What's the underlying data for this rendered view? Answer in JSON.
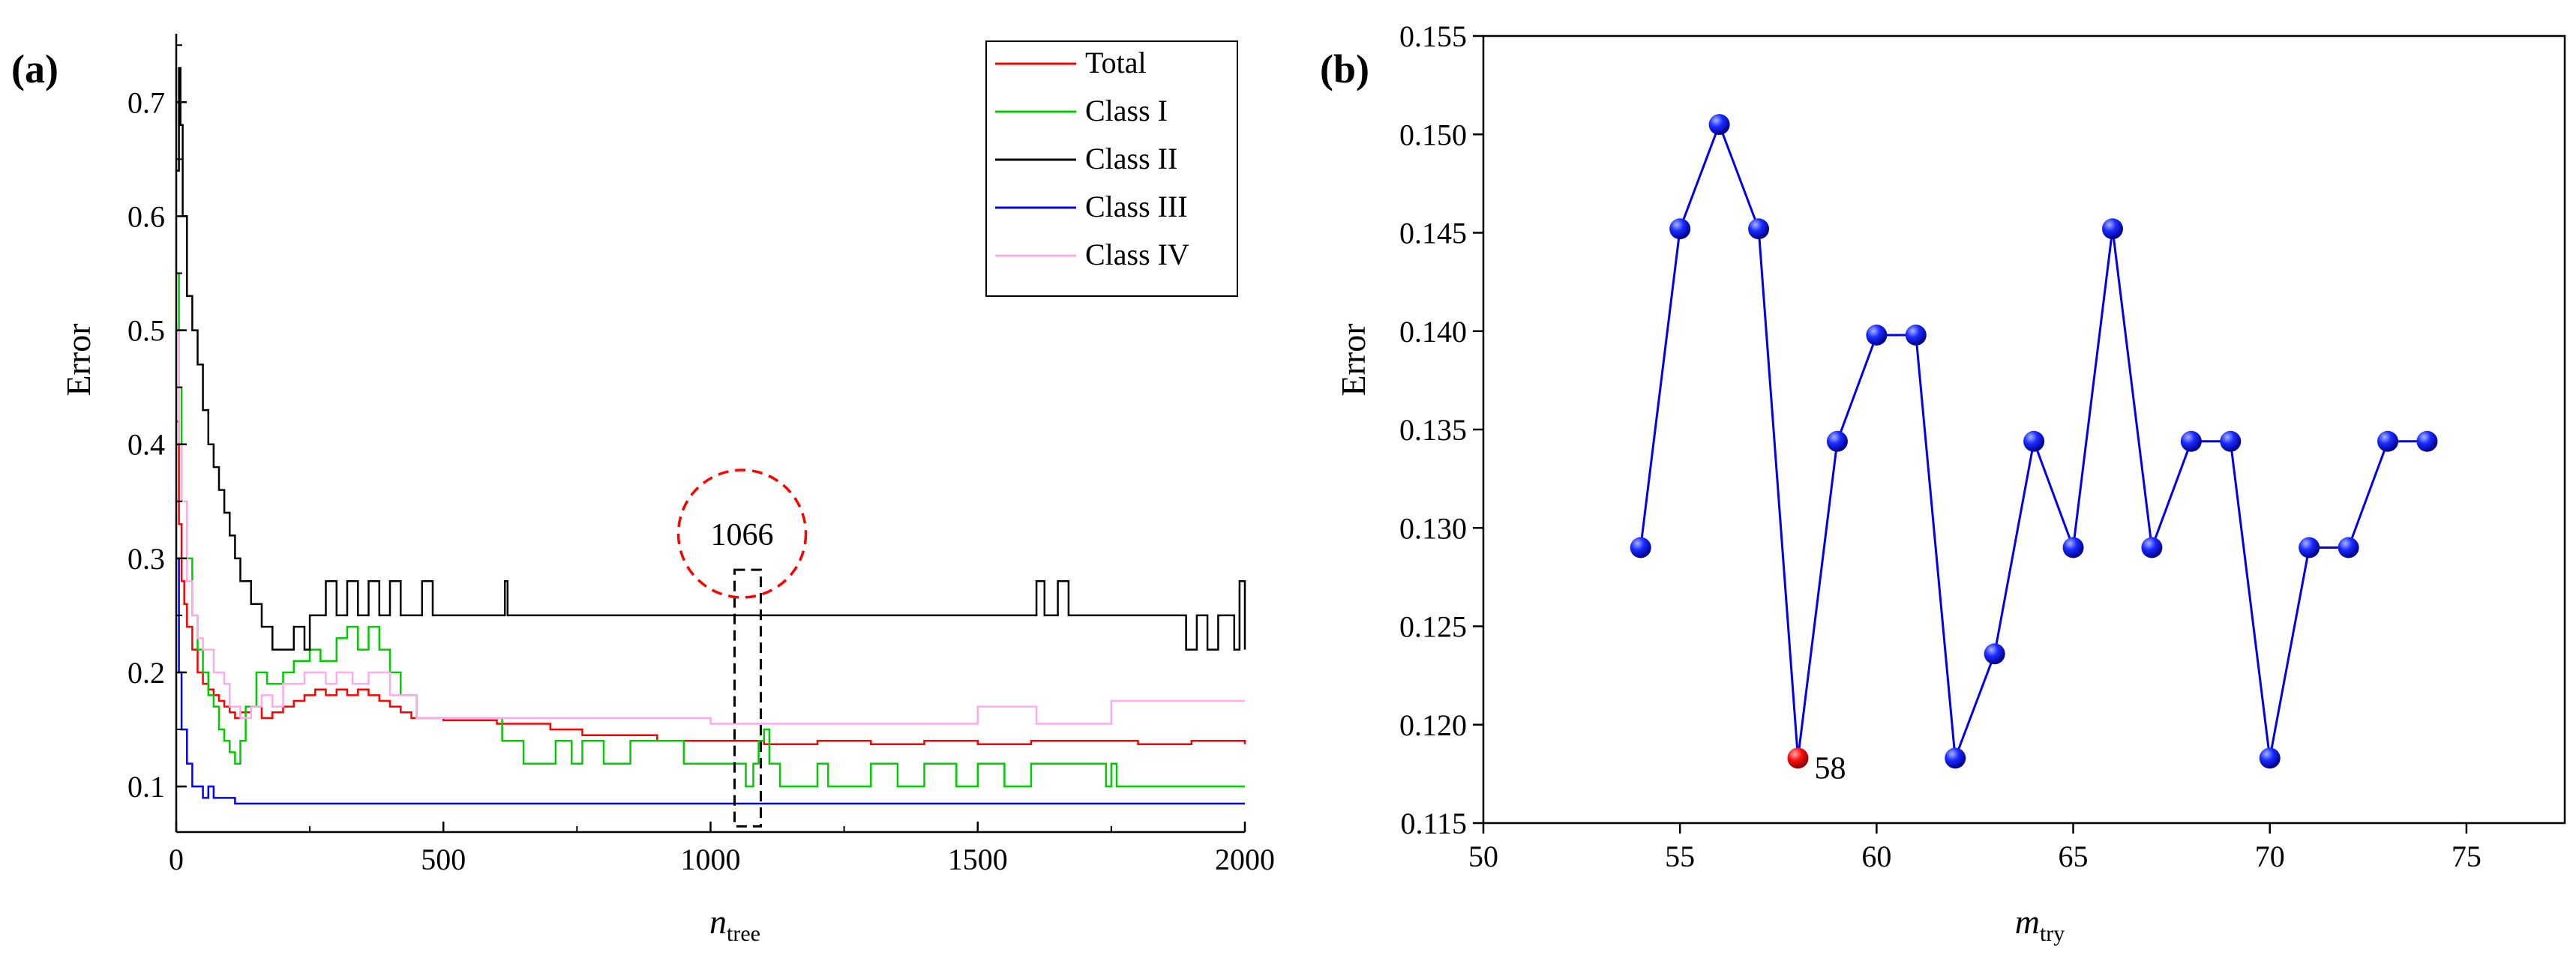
{
  "chart_data": [
    {
      "panel_label": "(a)",
      "type": "line",
      "xlabel": "n",
      "xlabel_sub": "tree",
      "ylabel": "Error",
      "xlim": [
        0,
        2000
      ],
      "ylim": [
        0.06,
        0.76
      ],
      "xticks": [
        0,
        500,
        1000,
        1500,
        2000
      ],
      "yticks": [
        0.1,
        0.2,
        0.3,
        0.4,
        0.5,
        0.6,
        0.7
      ],
      "ytick_labels": [
        "0.1",
        "0.2",
        "0.3",
        "0.4",
        "0.5",
        "0.6",
        "0.7"
      ],
      "legend_position": "top-right",
      "series": [
        {
          "name": "Total",
          "color": "#ff0000",
          "points": [
            [
              1,
              0.42
            ],
            [
              5,
              0.33
            ],
            [
              10,
              0.28
            ],
            [
              15,
              0.26
            ],
            [
              20,
              0.24
            ],
            [
              30,
              0.22
            ],
            [
              40,
              0.2
            ],
            [
              50,
              0.19
            ],
            [
              60,
              0.185
            ],
            [
              70,
              0.18
            ],
            [
              80,
              0.175
            ],
            [
              90,
              0.17
            ],
            [
              100,
              0.165
            ],
            [
              110,
              0.16
            ],
            [
              120,
              0.165
            ],
            [
              140,
              0.17
            ],
            [
              160,
              0.16
            ],
            [
              180,
              0.165
            ],
            [
              200,
              0.17
            ],
            [
              220,
              0.175
            ],
            [
              240,
              0.18
            ],
            [
              260,
              0.185
            ],
            [
              280,
              0.18
            ],
            [
              300,
              0.185
            ],
            [
              320,
              0.18
            ],
            [
              340,
              0.185
            ],
            [
              360,
              0.18
            ],
            [
              380,
              0.175
            ],
            [
              400,
              0.17
            ],
            [
              420,
              0.165
            ],
            [
              440,
              0.16
            ],
            [
              500,
              0.158
            ],
            [
              600,
              0.155
            ],
            [
              700,
              0.15
            ],
            [
              760,
              0.145
            ],
            [
              800,
              0.145
            ],
            [
              900,
              0.14
            ],
            [
              1000,
              0.14
            ],
            [
              1066,
              0.14
            ],
            [
              1100,
              0.137
            ],
            [
              1200,
              0.14
            ],
            [
              1300,
              0.137
            ],
            [
              1400,
              0.14
            ],
            [
              1500,
              0.137
            ],
            [
              1600,
              0.14
            ],
            [
              1700,
              0.14
            ],
            [
              1800,
              0.137
            ],
            [
              1900,
              0.14
            ],
            [
              2000,
              0.137
            ]
          ]
        },
        {
          "name": "Class I",
          "color": "#00cc00",
          "points": [
            [
              1,
              0.55
            ],
            [
              5,
              0.45
            ],
            [
              10,
              0.35
            ],
            [
              20,
              0.3
            ],
            [
              30,
              0.25
            ],
            [
              40,
              0.22
            ],
            [
              50,
              0.2
            ],
            [
              60,
              0.18
            ],
            [
              70,
              0.17
            ],
            [
              80,
              0.15
            ],
            [
              90,
              0.14
            ],
            [
              100,
              0.13
            ],
            [
              110,
              0.12
            ],
            [
              120,
              0.14
            ],
            [
              130,
              0.17
            ],
            [
              150,
              0.2
            ],
            [
              170,
              0.19
            ],
            [
              200,
              0.2
            ],
            [
              220,
              0.21
            ],
            [
              250,
              0.22
            ],
            [
              270,
              0.21
            ],
            [
              300,
              0.23
            ],
            [
              320,
              0.24
            ],
            [
              340,
              0.22
            ],
            [
              360,
              0.24
            ],
            [
              380,
              0.22
            ],
            [
              400,
              0.2
            ],
            [
              420,
              0.18
            ],
            [
              450,
              0.16
            ],
            [
              500,
              0.16
            ],
            [
              600,
              0.16
            ],
            [
              610,
              0.14
            ],
            [
              640,
              0.14
            ],
            [
              650,
              0.12
            ],
            [
              700,
              0.12
            ],
            [
              710,
              0.14
            ],
            [
              740,
              0.12
            ],
            [
              760,
              0.14
            ],
            [
              800,
              0.12
            ],
            [
              850,
              0.14
            ],
            [
              900,
              0.14
            ],
            [
              950,
              0.12
            ],
            [
              1000,
              0.12
            ],
            [
              1050,
              0.12
            ],
            [
              1066,
              0.1
            ],
            [
              1080,
              0.12
            ],
            [
              1090,
              0.14
            ],
            [
              1100,
              0.15
            ],
            [
              1110,
              0.12
            ],
            [
              1130,
              0.1
            ],
            [
              1150,
              0.1
            ],
            [
              1200,
              0.12
            ],
            [
              1220,
              0.1
            ],
            [
              1300,
              0.12
            ],
            [
              1350,
              0.1
            ],
            [
              1400,
              0.12
            ],
            [
              1450,
              0.12
            ],
            [
              1460,
              0.1
            ],
            [
              1500,
              0.12
            ],
            [
              1550,
              0.1
            ],
            [
              1600,
              0.12
            ],
            [
              1650,
              0.12
            ],
            [
              1700,
              0.12
            ],
            [
              1740,
              0.1
            ],
            [
              1750,
              0.12
            ],
            [
              1760,
              0.1
            ],
            [
              2000,
              0.1
            ]
          ]
        },
        {
          "name": "Class II",
          "color": "#000000",
          "points": [
            [
              1,
              0.64
            ],
            [
              5,
              0.73
            ],
            [
              8,
              0.68
            ],
            [
              12,
              0.6
            ],
            [
              20,
              0.53
            ],
            [
              30,
              0.5
            ],
            [
              40,
              0.47
            ],
            [
              50,
              0.43
            ],
            [
              60,
              0.4
            ],
            [
              70,
              0.38
            ],
            [
              80,
              0.36
            ],
            [
              90,
              0.34
            ],
            [
              100,
              0.32
            ],
            [
              110,
              0.3
            ],
            [
              120,
              0.28
            ],
            [
              140,
              0.26
            ],
            [
              160,
              0.24
            ],
            [
              180,
              0.22
            ],
            [
              200,
              0.22
            ],
            [
              220,
              0.24
            ],
            [
              240,
              0.22
            ],
            [
              250,
              0.25
            ],
            [
              270,
              0.25
            ],
            [
              280,
              0.28
            ],
            [
              300,
              0.25
            ],
            [
              320,
              0.28
            ],
            [
              340,
              0.25
            ],
            [
              360,
              0.28
            ],
            [
              380,
              0.25
            ],
            [
              400,
              0.28
            ],
            [
              420,
              0.25
            ],
            [
              460,
              0.28
            ],
            [
              480,
              0.25
            ],
            [
              600,
              0.25
            ],
            [
              615,
              0.28
            ],
            [
              620,
              0.25
            ],
            [
              1600,
              0.25
            ],
            [
              1610,
              0.28
            ],
            [
              1625,
              0.25
            ],
            [
              1650,
              0.28
            ],
            [
              1670,
              0.25
            ],
            [
              1870,
              0.25
            ],
            [
              1890,
              0.22
            ],
            [
              1910,
              0.25
            ],
            [
              1930,
              0.22
            ],
            [
              1950,
              0.25
            ],
            [
              1980,
              0.22
            ],
            [
              1990,
              0.28
            ],
            [
              2000,
              0.22
            ]
          ]
        },
        {
          "name": "Class III",
          "color": "#0000ff",
          "points": [
            [
              1,
              0.3
            ],
            [
              5,
              0.2
            ],
            [
              10,
              0.15
            ],
            [
              20,
              0.12
            ],
            [
              30,
              0.1
            ],
            [
              40,
              0.1
            ],
            [
              50,
              0.09
            ],
            [
              60,
              0.1
            ],
            [
              70,
              0.09
            ],
            [
              80,
              0.09
            ],
            [
              90,
              0.09
            ],
            [
              100,
              0.09
            ],
            [
              110,
              0.085
            ],
            [
              2000,
              0.085
            ]
          ]
        },
        {
          "name": "Class IV",
          "color": "#ffaaee",
          "points": [
            [
              1,
              0.5
            ],
            [
              5,
              0.4
            ],
            [
              10,
              0.35
            ],
            [
              20,
              0.28
            ],
            [
              30,
              0.25
            ],
            [
              40,
              0.23
            ],
            [
              50,
              0.22
            ],
            [
              70,
              0.2
            ],
            [
              90,
              0.19
            ],
            [
              100,
              0.17
            ],
            [
              120,
              0.16
            ],
            [
              140,
              0.17
            ],
            [
              160,
              0.18
            ],
            [
              180,
              0.17
            ],
            [
              200,
              0.19
            ],
            [
              240,
              0.2
            ],
            [
              280,
              0.19
            ],
            [
              300,
              0.2
            ],
            [
              330,
              0.19
            ],
            [
              360,
              0.2
            ],
            [
              400,
              0.18
            ],
            [
              450,
              0.16
            ],
            [
              500,
              0.16
            ],
            [
              1000,
              0.155
            ],
            [
              1066,
              0.155
            ],
            [
              1490,
              0.155
            ],
            [
              1500,
              0.17
            ],
            [
              1600,
              0.17
            ],
            [
              1610,
              0.155
            ],
            [
              1740,
              0.155
            ],
            [
              1750,
              0.175
            ],
            [
              2000,
              0.175
            ]
          ]
        }
      ],
      "annotations": [
        {
          "text": "1066",
          "x": 1066,
          "circled": true
        }
      ]
    },
    {
      "panel_label": "(b)",
      "type": "line",
      "xlabel": "m",
      "xlabel_sub": "try",
      "ylabel": "Error",
      "xlim": [
        50,
        77.5
      ],
      "ylim": [
        0.115,
        0.155
      ],
      "xticks": [
        50,
        55,
        60,
        65,
        70,
        75
      ],
      "yticks": [
        0.115,
        0.12,
        0.125,
        0.13,
        0.135,
        0.14,
        0.145,
        0.15,
        0.155
      ],
      "ytick_labels": [
        "0.115",
        "0.120",
        "0.125",
        "0.130",
        "0.135",
        "0.140",
        "0.145",
        "0.150",
        "0.155"
      ],
      "series": [
        {
          "name": "Error",
          "color": "#0000ee",
          "x": [
            54,
            55,
            56,
            57,
            58,
            59,
            60,
            61,
            62,
            63,
            64,
            65,
            66,
            67,
            68,
            69,
            70,
            71,
            72,
            73,
            74
          ],
          "values": [
            0.129,
            0.1452,
            0.1505,
            0.1452,
            0.1183,
            0.1344,
            0.1398,
            0.1398,
            0.1183,
            0.1236,
            0.1344,
            0.129,
            0.1452,
            0.129,
            0.1344,
            0.1344,
            0.1183,
            0.129,
            0.129,
            0.1344,
            0.1344
          ]
        }
      ],
      "highlight": {
        "x": 58,
        "value": 0.1183,
        "label": "58",
        "color": "#ee0000"
      }
    }
  ]
}
